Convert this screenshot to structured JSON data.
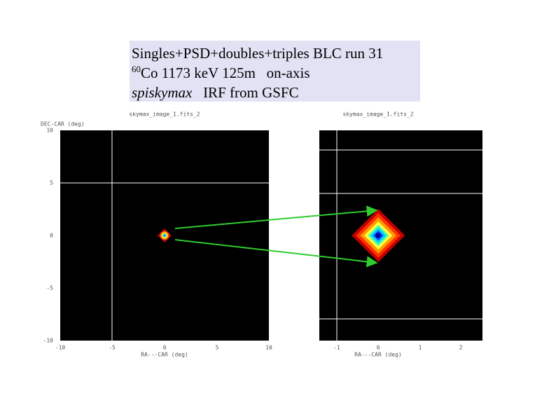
{
  "title_box": {
    "line1": "Singles+PSD+doubles+triples BLC run 31",
    "line2_superscript": "60",
    "line2": "Co 1173 keV 125m   on-axis",
    "line3_italic": "spiskymax",
    "line3": "   IRF from GSFC"
  },
  "left_plot": {
    "title": "skymax_image_1.fits_2",
    "y_label": "DEC-CAR (deg)",
    "x_label": "RA---CAR (deg)",
    "y_ticks": [
      "10",
      "5",
      "0",
      "-5",
      "-10"
    ],
    "x_ticks": [
      "-10",
      "-5",
      "0",
      "5",
      "10"
    ]
  },
  "right_plot": {
    "title": "skymax_image_1.fits_2",
    "x_label": "RA---CAR (deg)",
    "x_ticks": [
      "-1",
      "0",
      "1",
      "2"
    ]
  }
}
